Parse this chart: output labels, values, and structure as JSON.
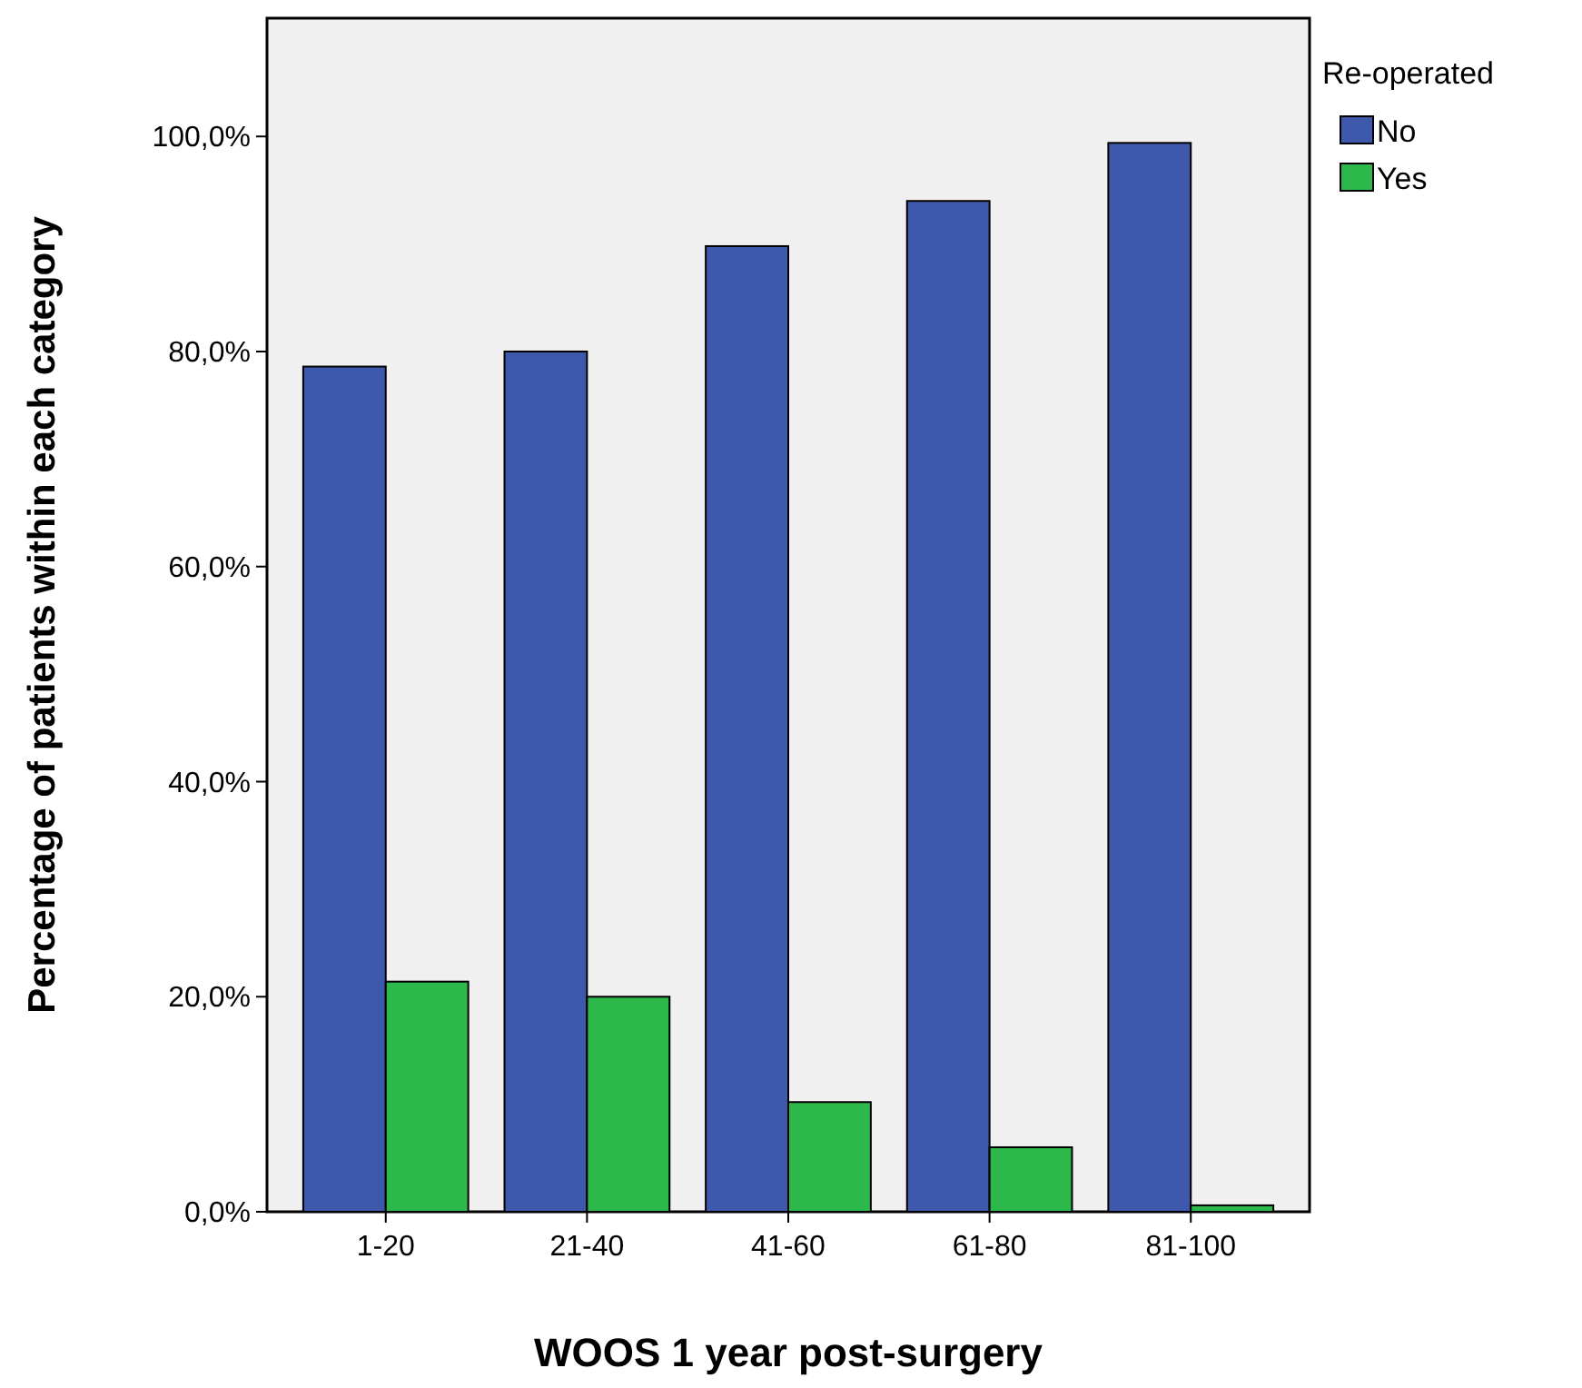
{
  "chart_data": {
    "type": "bar",
    "xlabel": "WOOS 1 year post-surgery",
    "ylabel": "Percentage of patients within each category",
    "legend_title": "Re-operated",
    "categories": [
      "1-20",
      "21-40",
      "41-60",
      "61-80",
      "81-100"
    ],
    "series": [
      {
        "name": "No",
        "color": "#3e58ac",
        "values": [
          78.6,
          80.0,
          89.8,
          94.0,
          99.4
        ]
      },
      {
        "name": "Yes",
        "color": "#2db84c",
        "values": [
          21.4,
          20.0,
          10.2,
          6.0,
          0.6
        ]
      }
    ],
    "ylim": [
      0,
      111
    ],
    "yticks": [
      {
        "value": 0,
        "label": "0,0%"
      },
      {
        "value": 20,
        "label": "20,0%"
      },
      {
        "value": 40,
        "label": "40,0%"
      },
      {
        "value": 60,
        "label": "60,0%"
      },
      {
        "value": 80,
        "label": "80,0%"
      },
      {
        "value": 100,
        "label": "100,0%"
      }
    ],
    "grid": false,
    "legend": "top right"
  }
}
